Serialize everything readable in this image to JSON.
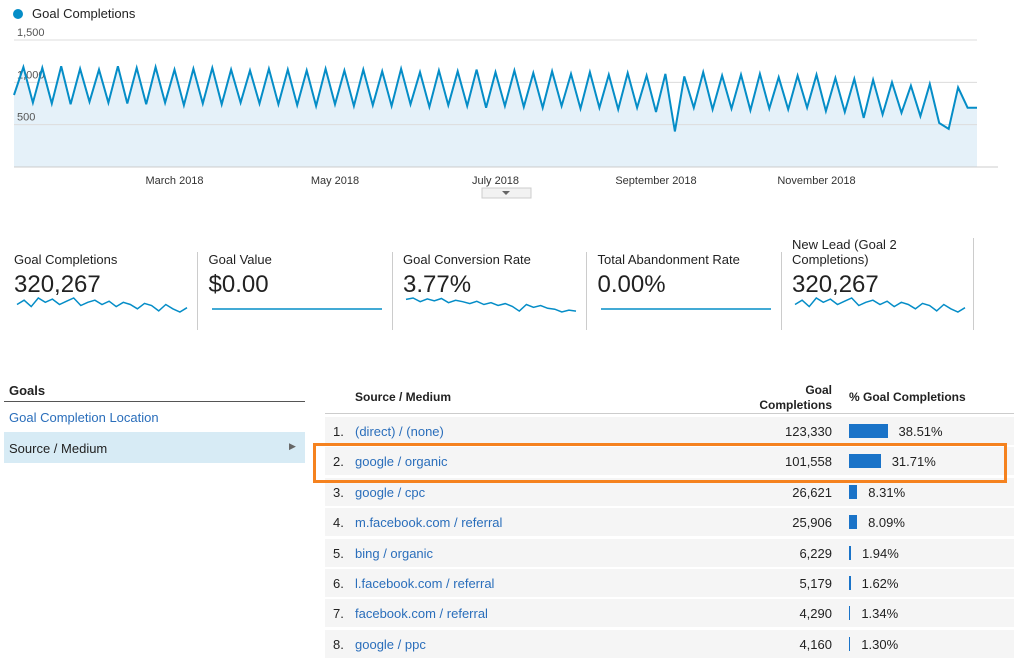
{
  "chart_data": {
    "type": "line",
    "legend": "Goal Completions",
    "color": "#058dc7",
    "area_color": "#e5f1f9",
    "categories": [
      null,
      null,
      null,
      null,
      null,
      null,
      null,
      null,
      null,
      null,
      null,
      null,
      null,
      null,
      null,
      null,
      null,
      "March 2018",
      null,
      null,
      null,
      null,
      null,
      null,
      null,
      null,
      null,
      null,
      null,
      null,
      null,
      null,
      null,
      null,
      "May 2018",
      null,
      null,
      null,
      null,
      null,
      null,
      null,
      null,
      null,
      null,
      null,
      null,
      null,
      null,
      null,
      null,
      "July 2018",
      null,
      null,
      null,
      null,
      null,
      null,
      null,
      null,
      null,
      null,
      null,
      null,
      null,
      null,
      null,
      null,
      "September 2018",
      null,
      null,
      null,
      null,
      null,
      null,
      null,
      null,
      null,
      null,
      null,
      null,
      null,
      null,
      null,
      null,
      "November 2018",
      null,
      null,
      null,
      null,
      null,
      null,
      null,
      null,
      null,
      null,
      null,
      null,
      null,
      null,
      null,
      null,
      null
    ],
    "values": [
      850,
      1180,
      760,
      1170,
      750,
      1190,
      740,
      1160,
      770,
      1150,
      760,
      1190,
      750,
      1170,
      740,
      1180,
      760,
      1150,
      730,
      1160,
      750,
      1170,
      740,
      1150,
      760,
      1140,
      750,
      1160,
      740,
      1150,
      730,
      1140,
      720,
      1160,
      740,
      1140,
      720,
      1150,
      730,
      1130,
      720,
      1160,
      740,
      1120,
      710,
      1140,
      730,
      1130,
      720,
      1150,
      700,
      1120,
      720,
      1140,
      710,
      1110,
      700,
      1130,
      720,
      1100,
      690,
      1120,
      700,
      1090,
      680,
      1110,
      700,
      1080,
      650,
      1100,
      420,
      1070,
      700,
      1120,
      680,
      1080,
      690,
      1090,
      670,
      1100,
      690,
      1060,
      680,
      1080,
      700,
      1090,
      660,
      1050,
      650,
      1040,
      580,
      1030,
      620,
      1000,
      640,
      960,
      600,
      980,
      520,
      450,
      940,
      700,
      700
    ],
    "ylim": [
      0,
      1500
    ],
    "yticks": [
      {
        "value": 500,
        "label": "500"
      },
      {
        "value": 1000,
        "label": "1,000"
      },
      {
        "value": 1500,
        "label": "1,500"
      }
    ],
    "grid": true
  },
  "scorecards": [
    {
      "title": "Goal Completions",
      "value": "320,267",
      "sparkline": [
        960,
        980,
        950,
        990,
        970,
        985,
        960,
        975,
        990,
        955,
        970,
        980,
        960,
        975,
        950,
        970,
        960,
        940,
        965,
        955,
        930,
        960,
        940,
        925,
        945
      ]
    },
    {
      "title": "Goal Value",
      "value": "$0.00",
      "sparkline": [
        0,
        0
      ]
    },
    {
      "title": "Goal Conversion Rate",
      "value": "3.77%",
      "sparkline": [
        3.95,
        3.98,
        3.9,
        3.96,
        3.92,
        3.97,
        3.88,
        3.93,
        3.9,
        3.86,
        3.91,
        3.84,
        3.88,
        3.82,
        3.86,
        3.8,
        3.7,
        3.84,
        3.78,
        3.82,
        3.76,
        3.74,
        3.68,
        3.72,
        3.7
      ]
    },
    {
      "title": "Total Abandonment Rate",
      "value": "0.00%",
      "sparkline": [
        0,
        0
      ]
    },
    {
      "title": "New Lead (Goal 2 Completions)",
      "value": "320,267",
      "sparkline": [
        960,
        980,
        950,
        990,
        970,
        985,
        960,
        975,
        990,
        955,
        970,
        980,
        960,
        975,
        950,
        970,
        960,
        940,
        965,
        955,
        930,
        960,
        940,
        925,
        945
      ]
    }
  ],
  "side_panel": {
    "heading": "Goals",
    "items": [
      "Goal Completion Location",
      "Source / Medium"
    ]
  },
  "table": {
    "headers": [
      "Source / Medium",
      "Goal Completions",
      "% Goal Completions"
    ],
    "bar_color": "#1a73c8",
    "rows": [
      {
        "rank": "1.",
        "source": "(direct) / (none)",
        "completions": "123,330",
        "percent": {
          "value": 38.51,
          "label": "38.51%"
        }
      },
      {
        "rank": "2.",
        "source": "google / organic",
        "completions": "101,558",
        "percent": {
          "value": 31.71,
          "label": "31.71%"
        }
      },
      {
        "rank": "3.",
        "source": "google / cpc",
        "completions": "26,621",
        "percent": {
          "value": 8.31,
          "label": "8.31%"
        }
      },
      {
        "rank": "4.",
        "source": "m.facebook.com / referral",
        "completions": "25,906",
        "percent": {
          "value": 8.09,
          "label": "8.09%"
        }
      },
      {
        "rank": "5.",
        "source": "bing / organic",
        "completions": "6,229",
        "percent": {
          "value": 1.94,
          "label": "1.94%"
        }
      },
      {
        "rank": "6.",
        "source": "l.facebook.com / referral",
        "completions": "5,179",
        "percent": {
          "value": 1.62,
          "label": "1.62%"
        }
      },
      {
        "rank": "7.",
        "source": "facebook.com / referral",
        "completions": "4,290",
        "percent": {
          "value": 1.34,
          "label": "1.34%"
        }
      },
      {
        "rank": "8.",
        "source": "google / ppc",
        "completions": "4,160",
        "percent": {
          "value": 1.3,
          "label": "1.30%"
        }
      }
    ]
  }
}
